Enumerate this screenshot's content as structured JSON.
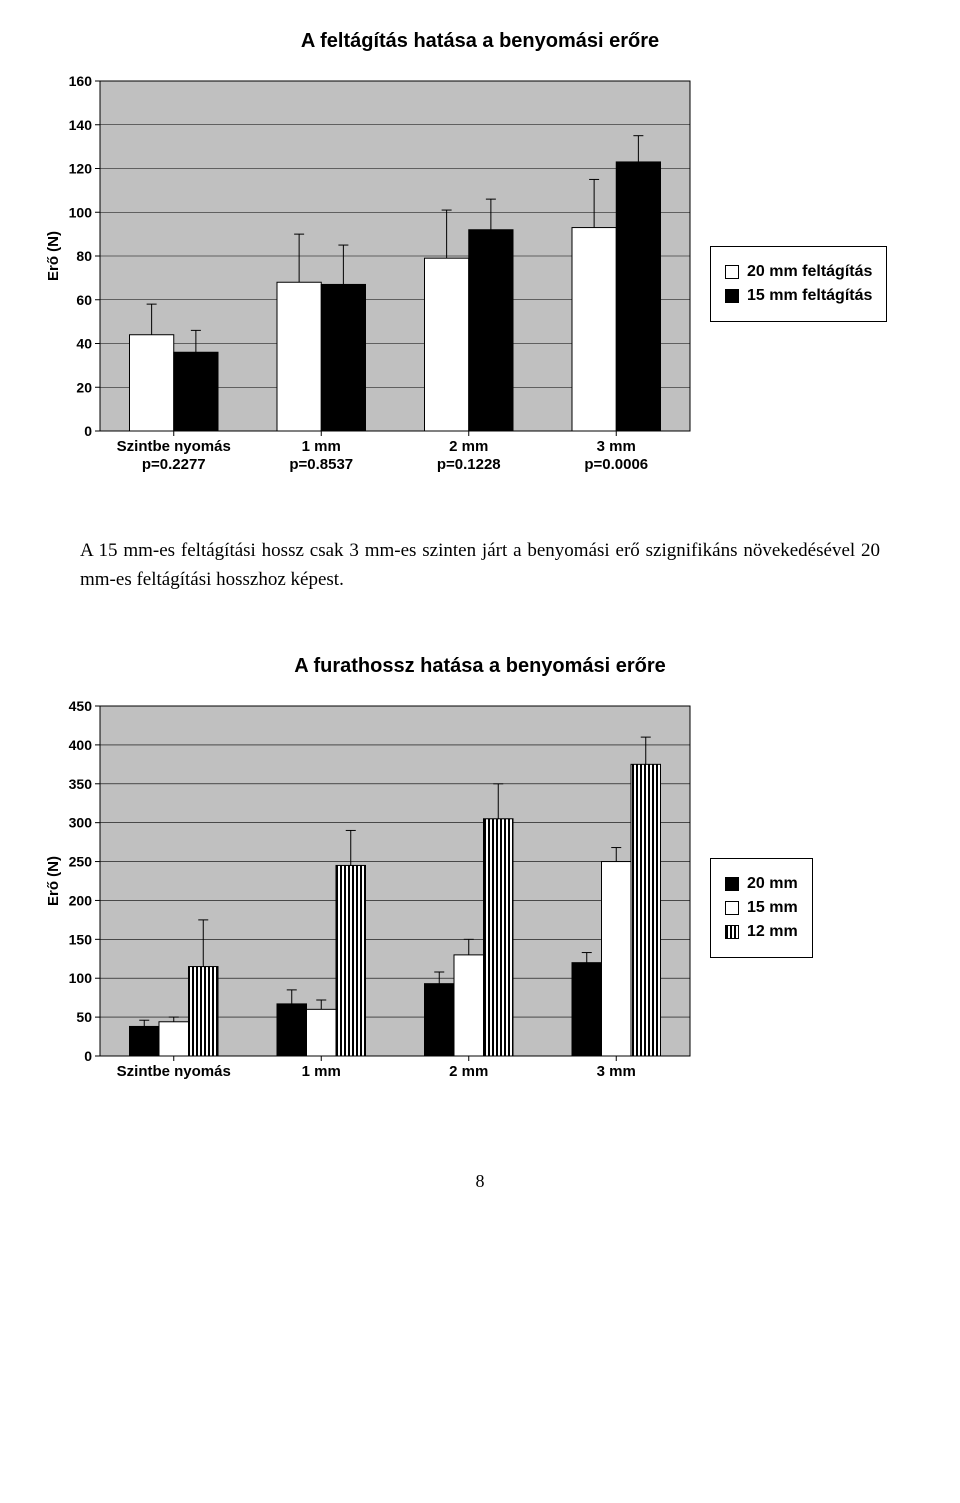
{
  "chart1": {
    "type": "bar",
    "title": "A feltágítás hatása a benyomási erőre",
    "ylabel": "Erő (N)",
    "ylim": [
      0,
      160
    ],
    "ytick_step": 20,
    "plot_bg": "#c0c0c0",
    "grid_color": "#000000",
    "bar_border": "#000000",
    "bar_colors": {
      "a": "#ffffff",
      "b": "#000000"
    },
    "categories": [
      {
        "line1": "Szintbe nyomás",
        "line2": "p=0.2277"
      },
      {
        "line1": "1 mm",
        "line2": "p=0.8537"
      },
      {
        "line1": "2 mm",
        "line2": "p=0.1228"
      },
      {
        "line1": "3 mm",
        "line2": "p=0.0006"
      }
    ],
    "series": [
      {
        "name": "20 mm feltágítás",
        "color_key": "a",
        "values": [
          44,
          68,
          79,
          93
        ],
        "errors": [
          14,
          22,
          22,
          22
        ]
      },
      {
        "name": "15 mm feltágítás",
        "color_key": "b",
        "values": [
          36,
          67,
          92,
          123
        ],
        "errors": [
          10,
          18,
          14,
          12
        ]
      }
    ],
    "legend": [
      {
        "label": "20 mm feltágítás",
        "swatch": "white"
      },
      {
        "label": "15 mm feltágítás",
        "swatch": "black"
      }
    ],
    "title_fontsize": 20,
    "axis_label_fontsize": 15,
    "tick_fontsize": 14,
    "cat_fontsize": 15
  },
  "caption_text": "A 15 mm-es feltágítási hossz csak 3 mm-es szinten járt a  benyomási erő szignifikáns növekedésével 20 mm-es feltágítási hosszhoz képest.",
  "chart2": {
    "type": "bar",
    "title": "A furathossz hatása a benyomási erőre",
    "ylabel": "Erő (N)",
    "ylim": [
      0,
      450
    ],
    "ytick_step": 50,
    "plot_bg": "#c0c0c0",
    "grid_color": "#000000",
    "bar_border": "#000000",
    "bar_colors": {
      "a": "#000000",
      "b": "#ffffff",
      "c": "hatch"
    },
    "categories": [
      {
        "line1": "Szintbe nyomás"
      },
      {
        "line1": "1 mm"
      },
      {
        "line1": "2 mm"
      },
      {
        "line1": "3 mm"
      }
    ],
    "series": [
      {
        "name": "20 mm",
        "color_key": "a",
        "values": [
          38,
          67,
          93,
          120
        ],
        "errors": [
          8,
          18,
          15,
          13
        ]
      },
      {
        "name": "15 mm",
        "color_key": "b",
        "values": [
          44,
          60,
          130,
          250
        ],
        "errors": [
          6,
          12,
          20,
          18
        ]
      },
      {
        "name": "12 mm",
        "color_key": "c",
        "values": [
          115,
          245,
          305,
          375
        ],
        "errors": [
          60,
          45,
          45,
          35
        ]
      }
    ],
    "legend": [
      {
        "label": "20 mm",
        "swatch": "black"
      },
      {
        "label": "15 mm",
        "swatch": "white"
      },
      {
        "label": "12 mm",
        "swatch": "hatch"
      }
    ],
    "title_fontsize": 20,
    "axis_label_fontsize": 15,
    "tick_fontsize": 14,
    "cat_fontsize": 15
  },
  "page_number": "8"
}
